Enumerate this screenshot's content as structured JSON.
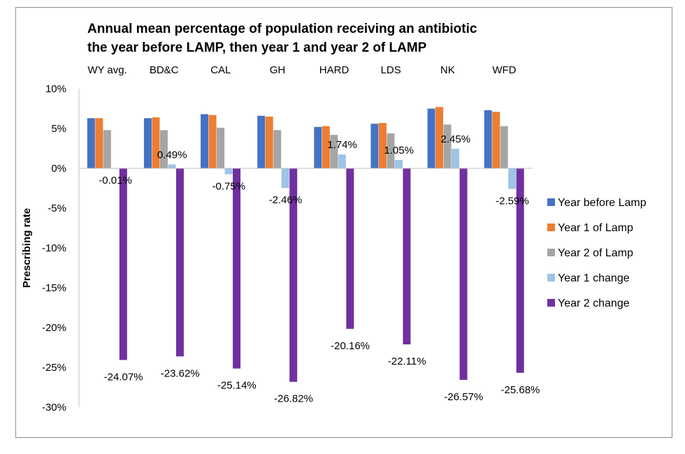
{
  "chart_data": {
    "type": "bar",
    "title_line1": "Annual mean percentage of population receiving an antibiotic",
    "title_line2": "the year before LAMP, then year 1 and year 2 of LAMP",
    "ylabel": "Prescribing rate",
    "xlabel": "",
    "ylim": [
      -30,
      10
    ],
    "yticks": [
      "10%",
      "5%",
      "0%",
      "-5%",
      "-10%",
      "-15%",
      "-20%",
      "-25%",
      "-30%"
    ],
    "ytick_values": [
      10,
      5,
      0,
      -5,
      -10,
      -15,
      -20,
      -25,
      -30
    ],
    "categories": [
      "WY avg.",
      "BD&C",
      "CAL",
      "GH",
      "HARD",
      "LDS",
      "NK",
      "WFD"
    ],
    "legend_position": "right",
    "grid": false,
    "series": [
      {
        "name": "Year before Lamp",
        "color": "#4472c4",
        "values": [
          6.3,
          6.3,
          6.8,
          6.6,
          5.2,
          5.6,
          7.5,
          7.3
        ]
      },
      {
        "name": "Year 1 of Lamp",
        "color": "#ed7d31",
        "values": [
          6.3,
          6.4,
          6.7,
          6.5,
          5.3,
          5.7,
          7.7,
          7.1
        ]
      },
      {
        "name": "Year 2 of Lamp",
        "color": "#a5a5a5",
        "values": [
          4.8,
          4.8,
          5.1,
          4.8,
          4.2,
          4.4,
          5.5,
          5.3
        ]
      },
      {
        "name": "Year 1 change",
        "color": "#9dc3e6",
        "values": [
          -0.01,
          0.49,
          -0.75,
          -2.46,
          1.74,
          1.05,
          2.45,
          -2.59
        ],
        "labels": [
          "-0.01%",
          "0.49%",
          "-0.75%",
          "-2.46%",
          "1.74%",
          "1.05%",
          "2.45%",
          "-2.59%"
        ]
      },
      {
        "name": "Year 2 change",
        "color": "#7030a0",
        "values": [
          -24.07,
          -23.62,
          -25.14,
          -26.82,
          -20.16,
          -22.11,
          -26.57,
          -25.68
        ],
        "labels": [
          "-24.07%",
          "-23.62%",
          "-25.14%",
          "-26.82%",
          "-20.16%",
          "-22.11%",
          "-26.57%",
          "-25.68%"
        ]
      }
    ]
  }
}
